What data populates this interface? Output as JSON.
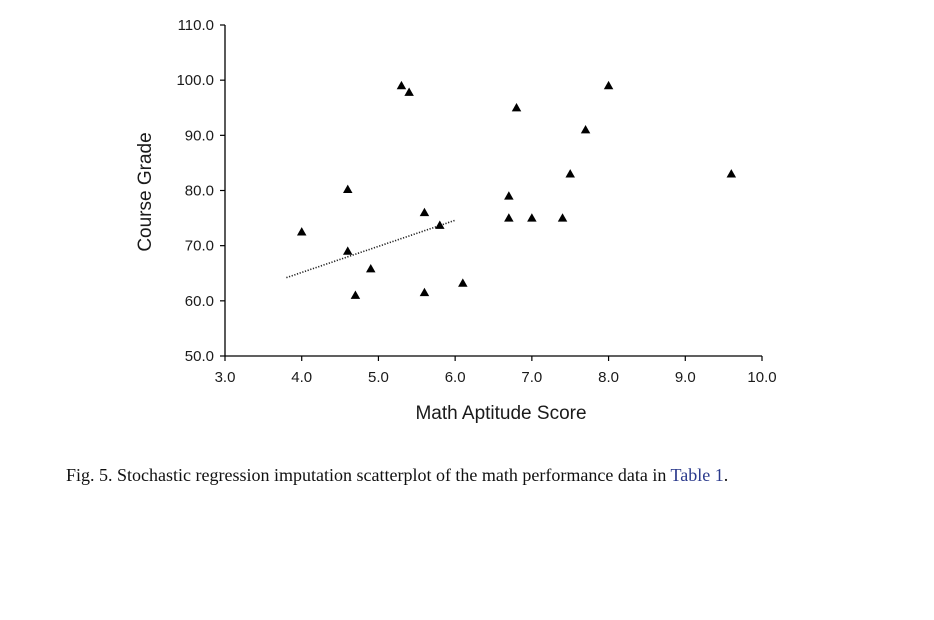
{
  "chart_data": {
    "type": "scatter",
    "xlabel": "Math Aptitude Score",
    "ylabel": "Course Grade",
    "xlim": [
      3.0,
      10.0
    ],
    "ylim": [
      50.0,
      110.0
    ],
    "xticks": [
      "3.0",
      "4.0",
      "5.0",
      "6.0",
      "7.0",
      "8.0",
      "9.0",
      "10.0"
    ],
    "yticks": [
      "50.0",
      "60.0",
      "70.0",
      "80.0",
      "90.0",
      "100.0",
      "110.0"
    ],
    "marker": "triangle",
    "marker_color": "#000000",
    "points": [
      {
        "x": 4.0,
        "y": 72.5
      },
      {
        "x": 4.6,
        "y": 80.2
      },
      {
        "x": 4.6,
        "y": 69.0
      },
      {
        "x": 4.7,
        "y": 61.0
      },
      {
        "x": 4.9,
        "y": 65.8
      },
      {
        "x": 5.3,
        "y": 99.0
      },
      {
        "x": 5.4,
        "y": 97.8
      },
      {
        "x": 5.6,
        "y": 76.0
      },
      {
        "x": 5.6,
        "y": 61.5
      },
      {
        "x": 5.8,
        "y": 73.7
      },
      {
        "x": 6.1,
        "y": 63.2
      },
      {
        "x": 6.7,
        "y": 79.0
      },
      {
        "x": 6.7,
        "y": 75.0
      },
      {
        "x": 6.8,
        "y": 95.0
      },
      {
        "x": 7.0,
        "y": 75.0
      },
      {
        "x": 7.4,
        "y": 75.0
      },
      {
        "x": 7.5,
        "y": 83.0
      },
      {
        "x": 7.7,
        "y": 91.0
      },
      {
        "x": 8.0,
        "y": 99.0
      },
      {
        "x": 9.6,
        "y": 83.0
      }
    ],
    "trend_line": {
      "style": "dotted",
      "x": [
        3.8,
        6.0
      ],
      "y": [
        64.2,
        74.6
      ]
    }
  },
  "caption": {
    "text": "Fig. 5. Stochastic regression imputation scatterplot of the math performance data in ",
    "link": "Table 1",
    "end": "."
  }
}
